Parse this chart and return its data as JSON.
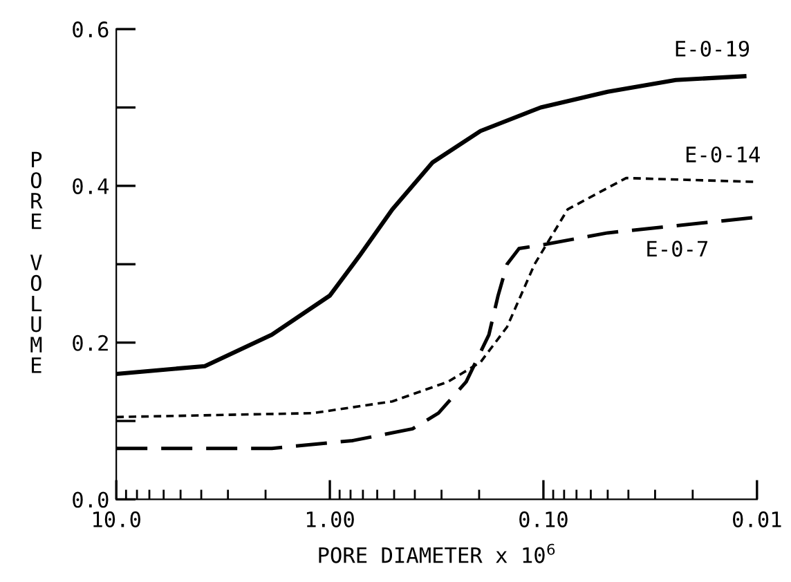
{
  "chart_data": {
    "type": "line",
    "xlabel": "PORE DIAMETER x 10$^{6}$",
    "ylabel": "PORE VOLUME",
    "log": "x",
    "xlim": [
      10,
      0.01
    ],
    "ylim": [
      0,
      0.6
    ],
    "xticks": [
      {
        "value": 10,
        "label": "10.0"
      },
      {
        "value": 1,
        "label": "1.00"
      },
      {
        "value": 0.1,
        "label": "0.10"
      },
      {
        "value": 0.01,
        "label": "0.01"
      }
    ],
    "yticks": [
      {
        "value": 0,
        "label": "0.0"
      },
      {
        "value": 0.1,
        "label": null
      },
      {
        "value": 0.2,
        "label": "0.2"
      },
      {
        "value": 0.3,
        "label": null
      },
      {
        "value": 0.4,
        "label": "0.4"
      },
      {
        "value": 0.5,
        "label": null
      },
      {
        "value": 0.6,
        "label": "0.6"
      }
    ],
    "grid": false,
    "legend": false,
    "marker": "none",
    "series": [
      {
        "name": "E-0-19",
        "color": "#000000",
        "line_style": "solid",
        "x": [
          10,
          3.85,
          1.87,
          1.0,
          0.73,
          0.51,
          0.33,
          0.197,
          0.103,
          0.05,
          0.024,
          0.0112
        ],
        "values": [
          0.16,
          0.17,
          0.21,
          0.26,
          0.31,
          0.37,
          0.43,
          0.47,
          0.5,
          0.52,
          0.535,
          0.54
        ]
      },
      {
        "name": "E-0-14",
        "color": "#000000",
        "line_style": "dotted",
        "x": [
          10,
          1.2,
          0.51,
          0.28,
          0.197,
          0.148,
          0.11,
          0.077,
          0.041,
          0.01
        ],
        "values": [
          0.105,
          0.11,
          0.125,
          0.15,
          0.175,
          0.22,
          0.3,
          0.37,
          0.41,
          0.405
        ]
      },
      {
        "name": "E-0-7",
        "color": "#000000",
        "line_style": "dashed",
        "x": [
          10,
          1.87,
          0.78,
          0.41,
          0.31,
          0.23,
          0.18,
          0.163,
          0.148,
          0.13,
          0.1,
          0.05,
          0.01
        ],
        "values": [
          0.065,
          0.065,
          0.075,
          0.09,
          0.11,
          0.15,
          0.21,
          0.26,
          0.3,
          0.32,
          0.325,
          0.34,
          0.36
        ]
      }
    ]
  }
}
